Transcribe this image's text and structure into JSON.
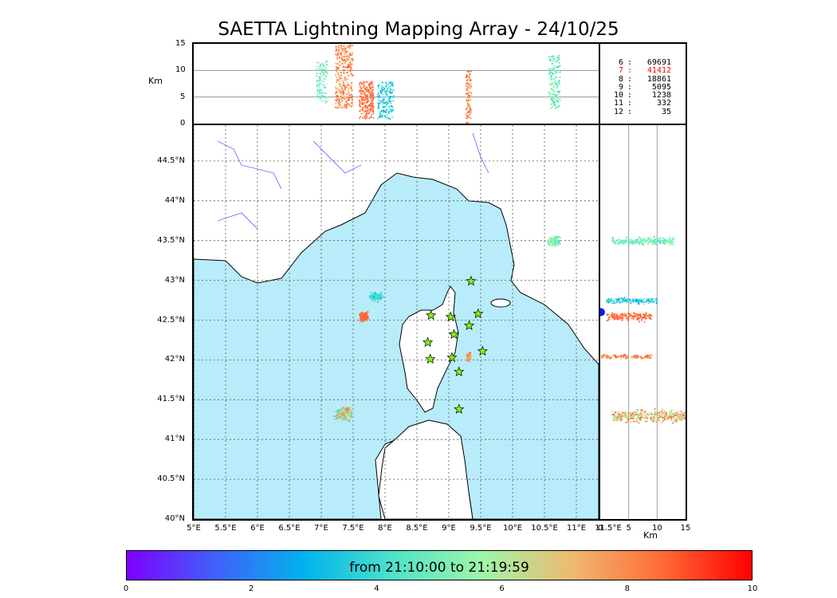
{
  "title": "SAETTA Lightning Mapping Array - 24/10/25",
  "map": {
    "lon_ticks": [
      "5°E",
      "5.5°E",
      "6°E",
      "6.5°E",
      "7°E",
      "7.5°E",
      "8°E",
      "8.5°E",
      "9°E",
      "9.5°E",
      "10°E",
      "10.5°E",
      "11°E",
      "11.5°E"
    ],
    "lat_ticks": [
      "40°N",
      "40.5°N",
      "41°N",
      "41.5°N",
      "42°N",
      "42.5°N",
      "43°N",
      "43.5°N",
      "44°N",
      "44.5°N"
    ],
    "lon_range": [
      5.0,
      12.0
    ],
    "lat_range": [
      40.0,
      44.95
    ],
    "sea_color": "#b8ecfb",
    "land_color": "#ffffff",
    "stations": [
      {
        "lon": 9.35,
        "lat": 42.99
      },
      {
        "lon": 8.72,
        "lat": 42.56
      },
      {
        "lon": 9.03,
        "lat": 42.54
      },
      {
        "lon": 9.46,
        "lat": 42.58
      },
      {
        "lon": 9.32,
        "lat": 42.43
      },
      {
        "lon": 9.08,
        "lat": 42.32
      },
      {
        "lon": 8.67,
        "lat": 42.22
      },
      {
        "lon": 9.53,
        "lat": 42.11
      },
      {
        "lon": 8.71,
        "lat": 42.01
      },
      {
        "lon": 9.05,
        "lat": 42.03
      },
      {
        "lon": 9.16,
        "lat": 41.85
      },
      {
        "lon": 9.16,
        "lat": 41.38
      }
    ]
  },
  "altitude_panel": {
    "unit": "Km",
    "ticks": [
      "0",
      "5",
      "10",
      "15"
    ],
    "range": [
      0,
      15
    ]
  },
  "counts": [
    {
      "level": "6",
      "value": "69691",
      "color": "#000000"
    },
    {
      "level": "7",
      "value": "41412",
      "color": "#ff0000"
    },
    {
      "level": "8",
      "value": "18861",
      "color": "#000000"
    },
    {
      "level": "9",
      "value": "5095",
      "color": "#000000"
    },
    {
      "level": "10",
      "value": "1238",
      "color": "#000000"
    },
    {
      "level": "11",
      "value": "332",
      "color": "#000000"
    },
    {
      "level": "12",
      "value": "35",
      "color": "#000000"
    }
  ],
  "colorbar": {
    "caption": "from 21:10:00 to 21:19:59",
    "ticks": [
      "0",
      "2",
      "4",
      "6",
      "8",
      "10"
    ],
    "range": [
      0,
      10
    ]
  },
  "chart_data": {
    "type": "scatter",
    "title": "SAETTA Lightning Mapping Array - 24/10/25",
    "clusters": [
      {
        "lon": 10.7,
        "lat": 43.5,
        "alt_km": [
          3,
          13
        ],
        "time_min": 6
      },
      {
        "lon": 7.8,
        "lat": 42.75,
        "alt_km": [
          1,
          8
        ],
        "time_min": 8
      },
      {
        "lon": 9.3,
        "lat": 42.05,
        "alt_km": [
          1,
          10
        ],
        "time_min": 8.5
      },
      {
        "lon": 7.3,
        "lat": 41.35,
        "alt_km": [
          2,
          15
        ],
        "time_min": 7
      }
    ]
  }
}
